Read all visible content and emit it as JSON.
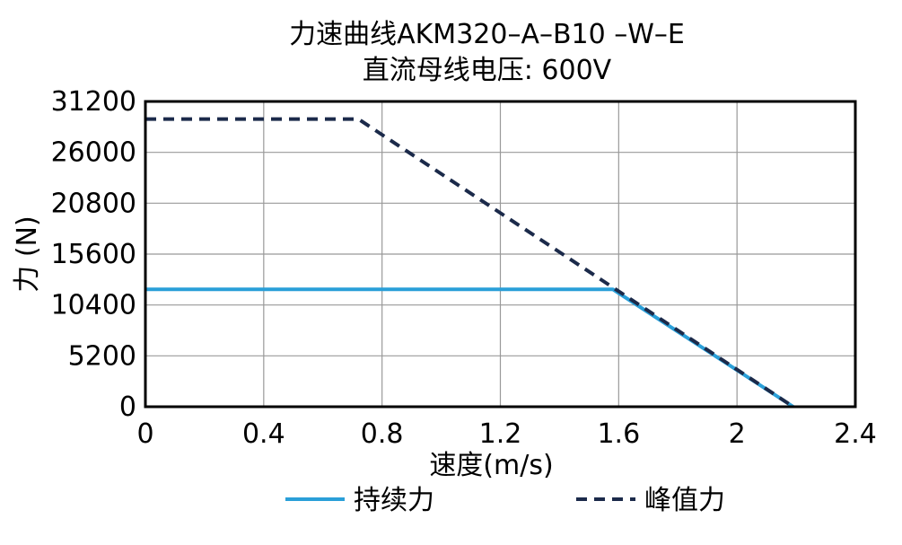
{
  "chart_data": {
    "type": "line",
    "title": "力速曲线AKM320–A–B10 –W–E",
    "subtitle": "直流母线电压: 600V",
    "xlabel": "速度(m/s)",
    "ylabel": "力 (N)",
    "xlim": [
      0,
      2.4
    ],
    "ylim": [
      0,
      31200
    ],
    "xticks": [
      0,
      0.4,
      0.8,
      1.2,
      1.6,
      2,
      2.4
    ],
    "xtick_labels": [
      "0",
      "0.4",
      "0.8",
      "1.2",
      "1.6",
      "2",
      "2.4"
    ],
    "yticks": [
      0,
      5200,
      10400,
      15600,
      20800,
      26000,
      31200
    ],
    "ytick_labels": [
      "0",
      "5200",
      "10400",
      "15600",
      "20800",
      "26000",
      "31200"
    ],
    "grid": true,
    "legend_position": "bottom",
    "series": [
      {
        "name": "持续力",
        "color": "#2a9fd8",
        "style": "solid",
        "x": [
          0,
          1.58,
          2.19
        ],
        "y": [
          12000,
          12000,
          0
        ]
      },
      {
        "name": "峰值力",
        "color": "#1b2a4a",
        "style": "dashed",
        "x": [
          0,
          0.72,
          2.19
        ],
        "y": [
          29400,
          29400,
          0
        ]
      }
    ]
  }
}
